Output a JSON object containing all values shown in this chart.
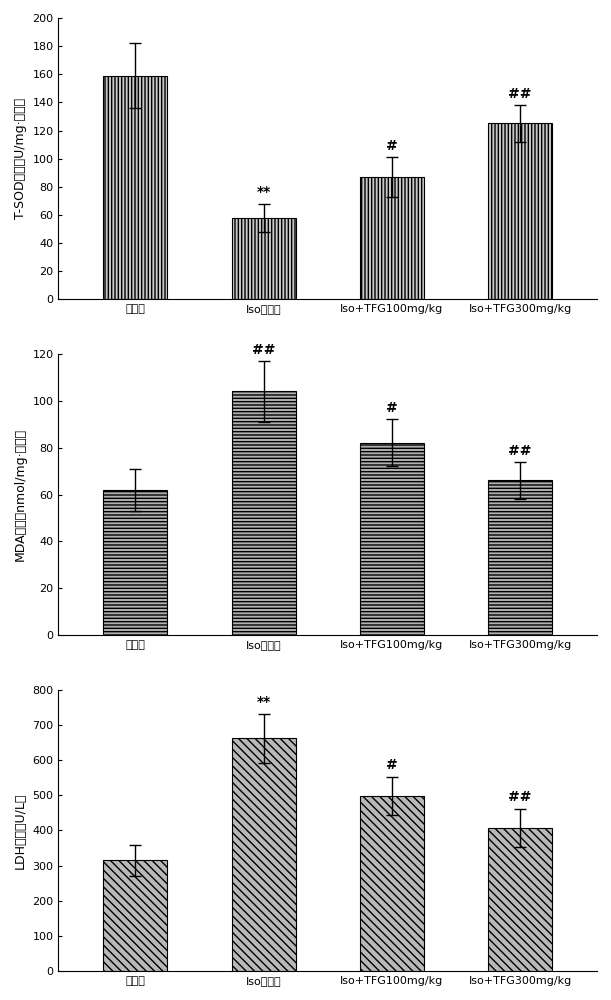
{
  "categories": [
    "对照组",
    "Iso模型组",
    "Iso+TFG100mg/kg",
    "Iso+TFG300mg/kg"
  ],
  "chart1": {
    "values": [
      159,
      58,
      87,
      125
    ],
    "errors": [
      23,
      10,
      14,
      13
    ],
    "ylabel": "T-SOD活性（U/mg·蛋白）",
    "ylim": [
      0,
      200
    ],
    "yticks": [
      0,
      20,
      40,
      60,
      80,
      100,
      120,
      140,
      160,
      180,
      200
    ],
    "annotations": [
      "",
      "**",
      "#",
      "##"
    ],
    "hatch": "|||||",
    "bar_color": "#c8c8c8"
  },
  "chart2": {
    "values": [
      62,
      104,
      82,
      66
    ],
    "errors": [
      9,
      13,
      10,
      8
    ],
    "ylabel": "MDA含量（nmol/mg·蛋白）",
    "ylim": [
      0,
      120
    ],
    "yticks": [
      0,
      20,
      40,
      60,
      80,
      100,
      120
    ],
    "annotations": [
      "",
      "##",
      "#",
      "##"
    ],
    "hatch": "-----",
    "bar_color": "#b0b0b0"
  },
  "chart3": {
    "values": [
      315,
      662,
      498,
      407
    ],
    "errors": [
      45,
      70,
      55,
      55
    ],
    "ylabel": "LDH活性（U/L）",
    "ylim": [
      0,
      800
    ],
    "yticks": [
      0,
      100,
      200,
      300,
      400,
      500,
      600,
      700,
      800
    ],
    "annotations": [
      "",
      "**",
      "#",
      "##"
    ],
    "hatch": "\\\\\\\\",
    "bar_color": "#b8b8b8"
  },
  "bar_edge_color": "#000000",
  "bar_width": 0.5,
  "figsize": [
    6.11,
    10.0
  ],
  "dpi": 100,
  "font_size_label": 9,
  "font_size_tick": 8,
  "font_size_annot": 10,
  "background_color": "#ffffff"
}
